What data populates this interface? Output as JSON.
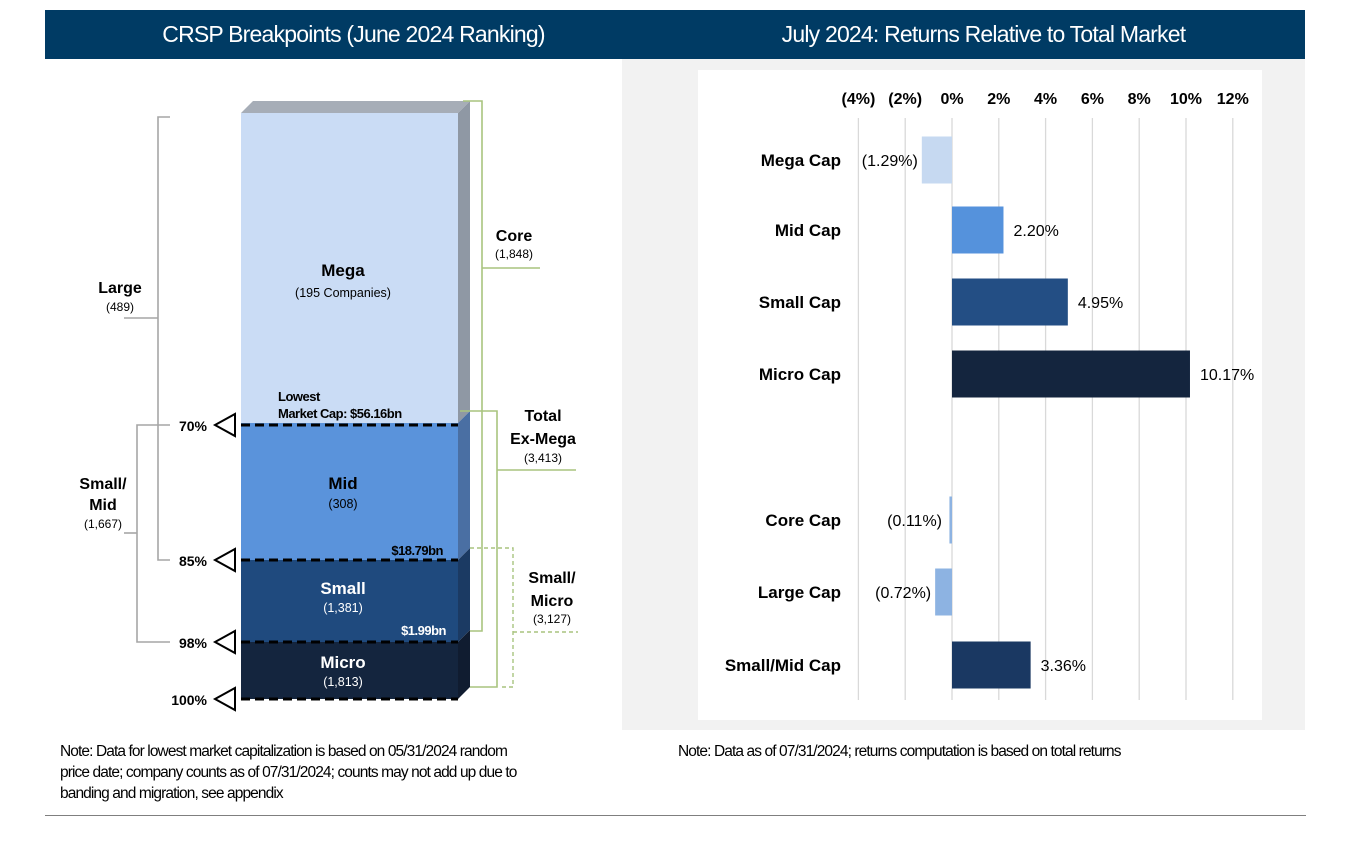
{
  "headers": {
    "left": "CRSP Breakpoints (June 2024 Ranking)",
    "right": "July 2024: Returns Relative to Total Market"
  },
  "breakpoints": {
    "segments": [
      {
        "name": "Mega",
        "count": "(195 Companies)",
        "color": "#cadcf5"
      },
      {
        "name": "Mid",
        "count": "(308)",
        "color": "#5a93db"
      },
      {
        "name": "Small",
        "count": "(1,381)",
        "color": "#1f4a7e"
      },
      {
        "name": "Micro",
        "count": "(1,813)",
        "color": "#14253e"
      }
    ],
    "percentiles": [
      "70%",
      "85%",
      "98%",
      "100%"
    ],
    "mega_threshold_label_1": "Lowest",
    "mega_threshold_label_2": "Market Cap: $56.16bn",
    "mid_threshold": "$18.79bn",
    "small_threshold": "$1.99bn",
    "left_groups": {
      "large": {
        "line1": "Large",
        "count": "(489)"
      },
      "small_mid": {
        "line1": "Small/",
        "line2": "Mid",
        "count": "(1,667)"
      }
    },
    "right_groups": {
      "core": {
        "line1": "Core",
        "count": "(1,848)"
      },
      "total_ex_mega": {
        "line1": "Total",
        "line2": "Ex-Mega",
        "count": "(3,413)"
      },
      "small_micro": {
        "line1": "Small/",
        "line2": "Micro",
        "count": "(3,127)"
      }
    }
  },
  "chart_data": {
    "type": "bar",
    "orientation": "horizontal",
    "title": "July 2024: Returns Relative to Total Market",
    "xlim": [
      -4,
      12
    ],
    "ticks": [
      -4,
      -2,
      0,
      2,
      4,
      6,
      8,
      10,
      12
    ],
    "tick_labels": [
      "(4%)",
      "(2%)",
      "0%",
      "2%",
      "4%",
      "6%",
      "8%",
      "10%",
      "12%"
    ],
    "grid": true,
    "categories": [
      "Mega Cap",
      "Mid Cap",
      "Small Cap",
      "Micro Cap",
      "Core Cap",
      "Large Cap",
      "Small/Mid Cap"
    ],
    "values": [
      -1.29,
      2.2,
      4.95,
      10.17,
      -0.11,
      -0.72,
      3.36
    ],
    "value_labels": [
      "(1.29%)",
      "2.20%",
      "4.95%",
      "10.17%",
      "(0.11%)",
      "(0.72%)",
      "3.36%"
    ],
    "colors": [
      "#c6d9f1",
      "#5592dc",
      "#234e84",
      "#14253e",
      "#8db3e2",
      "#8db3e2",
      "#1a3862"
    ]
  },
  "notes": {
    "left_1": "Note: Data for lowest market capitalization is based on 05/31/2024 random",
    "left_2": "price date; company counts as of 07/31/2024; counts may not add up due to",
    "left_3": "banding and migration, see appendix",
    "right": "Note: Data as of 07/31/2024; returns computation is based on total returns"
  }
}
